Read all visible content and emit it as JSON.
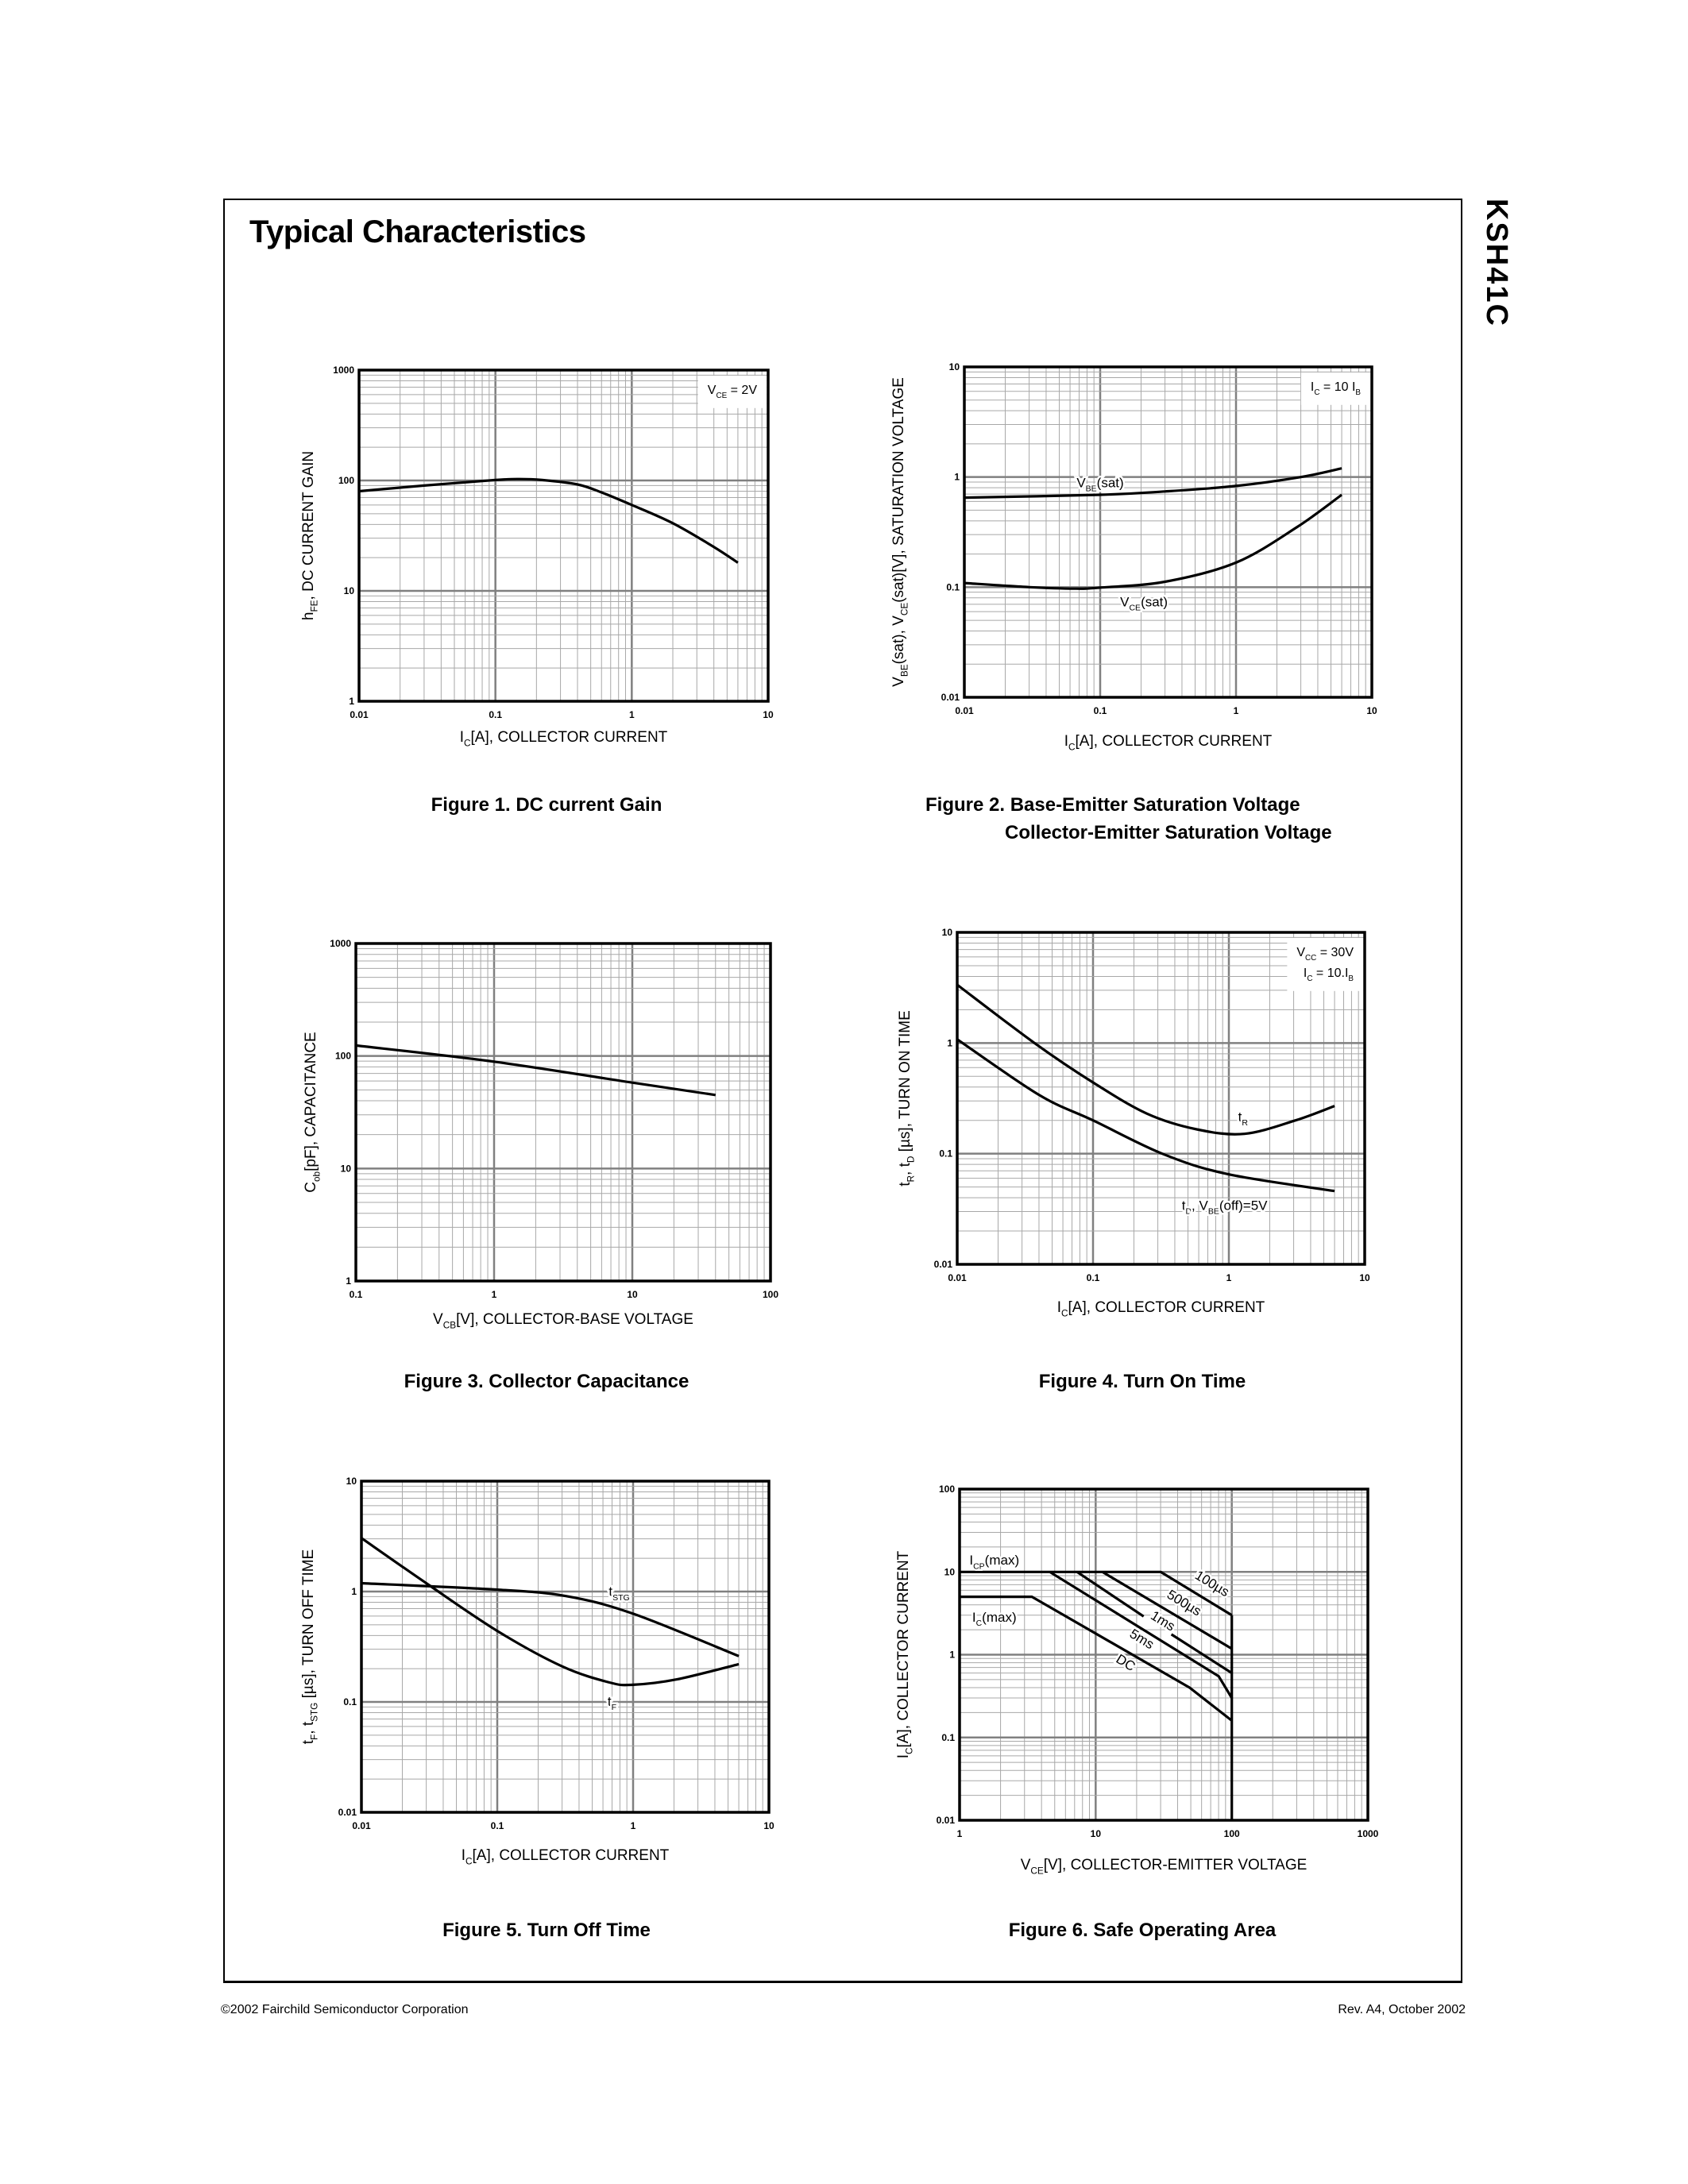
{
  "page": {
    "title": "Typical Characteristics",
    "part_number": "KSH41C",
    "footer_left": "©2002 Fairchild Semiconductor Corporation",
    "footer_right": "Rev. A4, October 2002"
  },
  "chart_data": [
    {
      "type": "line",
      "caption": [
        "Figure 1. DC current Gain"
      ],
      "xscale": "log",
      "yscale": "log",
      "xlim": [
        0.01,
        10
      ],
      "ylim": [
        1,
        1000
      ],
      "grid": true,
      "xticks": [
        "0.01",
        "0.1",
        "1",
        "10"
      ],
      "yticks": [
        "1",
        "10",
        "100",
        "1000"
      ],
      "xlabel": [
        {
          "text": "I"
        },
        {
          "text": "C",
          "sub": true
        },
        {
          "text": "[A], COLLECTOR CURRENT"
        }
      ],
      "ylabel": [
        {
          "text": "h"
        },
        {
          "text": "FE",
          "sub": true
        },
        {
          "text": ", DC CURRENT GAIN"
        }
      ],
      "conditions": {
        "position": "top-right",
        "lines": [
          [
            {
              "text": "V"
            },
            {
              "text": "CE",
              "sub": true
            },
            {
              "text": " = 2V"
            }
          ]
        ]
      },
      "series": [
        {
          "interpolation": "smooth",
          "points": [
            [
              0.01,
              80
            ],
            [
              0.03,
              90
            ],
            [
              0.1,
              101
            ],
            [
              0.15,
              103
            ],
            [
              0.22,
              101
            ],
            [
              0.4,
              92
            ],
            [
              0.6,
              78
            ],
            [
              1,
              60
            ],
            [
              2,
              41
            ],
            [
              4,
              25
            ],
            [
              6,
              18
            ]
          ]
        }
      ],
      "annotations": []
    },
    {
      "type": "line",
      "caption": [
        "Figure 2. Base-Emitter Saturation Voltage",
        "Collector-Emitter Saturation Voltage"
      ],
      "xscale": "log",
      "yscale": "log",
      "xlim": [
        0.01,
        10
      ],
      "ylim": [
        0.01,
        10
      ],
      "grid": true,
      "xticks": [
        "0.01",
        "0.1",
        "1",
        "10"
      ],
      "yticks": [
        "0.01",
        "0.1",
        "1",
        "10"
      ],
      "xlabel": [
        {
          "text": "I"
        },
        {
          "text": "C",
          "sub": true
        },
        {
          "text": "[A], COLLECTOR CURRENT"
        }
      ],
      "ylabel": [
        {
          "text": "V"
        },
        {
          "text": "BE",
          "sub": true
        },
        {
          "text": "(sat), V"
        },
        {
          "text": "CE",
          "sub": true
        },
        {
          "text": "(sat)[V], SATURATION VOLTAGE"
        }
      ],
      "conditions": {
        "position": "top-right",
        "lines": [
          [
            {
              "text": "I"
            },
            {
              "text": "C",
              "sub": true
            },
            {
              "text": " = 10 I"
            },
            {
              "text": "B",
              "sub": true
            }
          ]
        ]
      },
      "series": [
        {
          "name": "VBE(sat)",
          "interpolation": "smooth",
          "points": [
            [
              0.01,
              0.65
            ],
            [
              0.1,
              0.69
            ],
            [
              0.3,
              0.74
            ],
            [
              1,
              0.83
            ],
            [
              3,
              1.0
            ],
            [
              6,
              1.2
            ]
          ]
        },
        {
          "name": "VCE(sat)",
          "interpolation": "smooth",
          "points": [
            [
              0.01,
              0.109
            ],
            [
              0.03,
              0.1
            ],
            [
              0.065,
              0.097
            ],
            [
              0.1,
              0.099
            ],
            [
              0.3,
              0.112
            ],
            [
              1,
              0.167
            ],
            [
              2.8,
              0.35
            ],
            [
              6,
              0.69
            ]
          ]
        }
      ],
      "annotations": [
        {
          "parts": [
            {
              "text": "V"
            },
            {
              "text": "BE",
              "sub": true
            },
            {
              "text": "(sat)"
            }
          ],
          "at": [
            0.1,
            0.81
          ]
        },
        {
          "parts": [
            {
              "text": "V"
            },
            {
              "text": "CE",
              "sub": true
            },
            {
              "text": "(sat)"
            }
          ],
          "at": [
            0.21,
            0.067
          ]
        }
      ]
    },
    {
      "type": "line",
      "caption": [
        "Figure 3. Collector Capacitance"
      ],
      "xscale": "log",
      "yscale": "log",
      "xlim": [
        0.1,
        100
      ],
      "ylim": [
        1,
        1000
      ],
      "grid": true,
      "xticks": [
        "0.1",
        "1",
        "10",
        "100"
      ],
      "yticks": [
        "1",
        "10",
        "100",
        "1000"
      ],
      "xlabel": [
        {
          "text": "V"
        },
        {
          "text": "CB",
          "sub": true
        },
        {
          "text": "[V], COLLECTOR-BASE VOLTAGE"
        }
      ],
      "ylabel": [
        {
          "text": "C"
        },
        {
          "text": "ob",
          "sub": true
        },
        {
          "text": "[pF], CAPACITANCE"
        }
      ],
      "series": [
        {
          "interpolation": "smooth",
          "points": [
            [
              0.1,
              124
            ],
            [
              1,
              89
            ],
            [
              10,
              58
            ],
            [
              40,
              45
            ]
          ]
        }
      ],
      "annotations": []
    },
    {
      "type": "line",
      "caption": [
        "Figure 4. Turn On Time"
      ],
      "xscale": "log",
      "yscale": "log",
      "xlim": [
        0.01,
        10
      ],
      "ylim": [
        0.01,
        10
      ],
      "grid": true,
      "xticks": [
        "0.01",
        "0.1",
        "1",
        "10"
      ],
      "yticks": [
        "0.01",
        "0.1",
        "1",
        "10"
      ],
      "xlabel": [
        {
          "text": "I"
        },
        {
          "text": "C",
          "sub": true
        },
        {
          "text": "[A], COLLECTOR CURRENT"
        }
      ],
      "ylabel": [
        {
          "text": "t"
        },
        {
          "text": "R",
          "sub": true
        },
        {
          "text": ", t"
        },
        {
          "text": "D",
          "sub": true
        },
        {
          "text": " [µs], TURN ON TIME"
        }
      ],
      "conditions": {
        "position": "top-right",
        "plain": true,
        "lines": [
          [
            {
              "text": "V"
            },
            {
              "text": "CC",
              "sub": true
            },
            {
              "text": " = 30V"
            }
          ],
          [
            {
              "text": "I"
            },
            {
              "text": "C",
              "sub": true
            },
            {
              "text": " = 10.I"
            },
            {
              "text": "B",
              "sub": true
            }
          ]
        ]
      },
      "series": [
        {
          "name": "tR",
          "interpolation": "smooth",
          "points": [
            [
              0.01,
              3.36
            ],
            [
              0.037,
              1.0
            ],
            [
              0.1,
              0.44
            ],
            [
              0.25,
              0.23
            ],
            [
              0.58,
              0.166
            ],
            [
              1.3,
              0.151
            ],
            [
              3.1,
              0.2
            ],
            [
              6,
              0.27
            ]
          ]
        },
        {
          "name": "tD",
          "interpolation": "smooth",
          "points": [
            [
              0.01,
              1.08
            ],
            [
              0.04,
              0.34
            ],
            [
              0.1,
              0.2
            ],
            [
              0.33,
              0.099
            ],
            [
              1,
              0.065
            ],
            [
              6,
              0.046
            ]
          ]
        }
      ],
      "annotations": [
        {
          "parts": [
            {
              "text": "t"
            },
            {
              "text": "R",
              "sub": true
            }
          ],
          "at": [
            1.27,
            0.196
          ]
        },
        {
          "parts": [
            {
              "text": "t"
            },
            {
              "text": "D",
              "sub": true
            },
            {
              "text": ", V"
            },
            {
              "text": "BE",
              "sub": true
            },
            {
              "text": "(off)=5V"
            }
          ],
          "at": [
            0.93,
            0.031
          ]
        }
      ]
    },
    {
      "type": "line",
      "caption": [
        "Figure 5. Turn Off Time"
      ],
      "xscale": "log",
      "yscale": "log",
      "xlim": [
        0.01,
        10
      ],
      "ylim": [
        0.01,
        10
      ],
      "grid": true,
      "xticks": [
        "0.01",
        "0.1",
        "1",
        "10"
      ],
      "yticks": [
        "0.01",
        "0.1",
        "1",
        "10"
      ],
      "xlabel": [
        {
          "text": "I"
        },
        {
          "text": "C",
          "sub": true
        },
        {
          "text": "[A], COLLECTOR CURRENT"
        }
      ],
      "ylabel": [
        {
          "text": "t"
        },
        {
          "text": "F",
          "sub": true
        },
        {
          "text": ", t"
        },
        {
          "text": "STG",
          "sub": true
        },
        {
          "text": " [µs], TURN OFF TIME"
        }
      ],
      "series": [
        {
          "name": "tSTG",
          "interpolation": "smooth",
          "points": [
            [
              0.01,
              1.19
            ],
            [
              0.1,
              1.04
            ],
            [
              0.32,
              0.91
            ],
            [
              1,
              0.63
            ],
            [
              6,
              0.26
            ]
          ]
        },
        {
          "name": "tF",
          "interpolation": "smooth",
          "points": [
            [
              0.01,
              3.05
            ],
            [
              0.03,
              1.19
            ],
            [
              0.1,
              0.44
            ],
            [
              0.3,
              0.21
            ],
            [
              0.67,
              0.15
            ],
            [
              1,
              0.143
            ],
            [
              2.1,
              0.16
            ],
            [
              6,
              0.22
            ]
          ]
        }
      ],
      "annotations": [
        {
          "parts": [
            {
              "text": "t"
            },
            {
              "text": "STG",
              "sub": true
            }
          ],
          "at": [
            0.79,
            0.91
          ]
        },
        {
          "parts": [
            {
              "text": "t"
            },
            {
              "text": "F",
              "sub": true
            }
          ],
          "at": [
            0.7,
            0.092
          ]
        }
      ]
    },
    {
      "type": "line",
      "caption": [
        "Figure 6. Safe Operating Area"
      ],
      "xscale": "log",
      "yscale": "log",
      "xlim": [
        1,
        1000
      ],
      "ylim": [
        0.01,
        100
      ],
      "grid": true,
      "xticks": [
        "1",
        "10",
        "100",
        "1000"
      ],
      "yticks": [
        "0.01",
        "0.1",
        "1",
        "10",
        "100"
      ],
      "xlabel": [
        {
          "text": "V"
        },
        {
          "text": "CE",
          "sub": true
        },
        {
          "text": "[V], COLLECTOR-EMITTER VOLTAGE"
        }
      ],
      "ylabel": [
        {
          "text": "I"
        },
        {
          "text": "C",
          "sub": true
        },
        {
          "text": "[A], COLLECTOR CURRENT"
        }
      ],
      "series": [
        {
          "name": "100µs",
          "interpolation": "linear",
          "points": [
            [
              1,
              10
            ],
            [
              30,
              10
            ],
            [
              100,
              3
            ]
          ]
        },
        {
          "name": "500µs",
          "interpolation": "linear",
          "points": [
            [
              11.2,
              10
            ],
            [
              100,
              1.18
            ]
          ]
        },
        {
          "name": "1ms",
          "interpolation": "linear",
          "points": [
            [
              7.3,
              10
            ],
            [
              22.5,
              2.9
            ]
          ]
        },
        {
          "name": "1ms",
          "interpolation": "linear",
          "points": [
            [
              36,
              1.76
            ],
            [
              100,
              0.6
            ]
          ]
        },
        {
          "name": "5ms",
          "interpolation": "linear",
          "points": [
            [
              4.6,
              10
            ],
            [
              80,
              0.55
            ],
            [
              100,
              0.3
            ]
          ]
        },
        {
          "name": "DC",
          "interpolation": "linear",
          "points": [
            [
              1,
              5
            ],
            [
              3.4,
              5
            ],
            [
              49,
              0.4
            ],
            [
              100,
              0.16
            ]
          ]
        },
        {
          "interpolation": "linear",
          "points": [
            [
              100,
              3
            ],
            [
              100,
              0.01
            ]
          ]
        }
      ],
      "annotations": [
        {
          "parts": [
            {
              "text": "I"
            },
            {
              "text": "CP",
              "sub": true
            },
            {
              "text": "(max)"
            }
          ],
          "at": [
            1.8,
            12.2
          ]
        },
        {
          "parts": [
            {
              "text": "I"
            },
            {
              "text": "C",
              "sub": true
            },
            {
              "text": "(max)"
            }
          ],
          "at": [
            1.8,
            2.5
          ]
        },
        {
          "parts": [
            {
              "text": "100µs"
            }
          ],
          "at": [
            69,
            6.5
          ],
          "along_line": true
        },
        {
          "parts": [
            {
              "text": "500µs"
            }
          ],
          "at": [
            43,
            3.8
          ],
          "along_line": true
        },
        {
          "parts": [
            {
              "text": "1ms"
            }
          ],
          "at": [
            30,
            2.3
          ],
          "along_line": true
        },
        {
          "parts": [
            {
              "text": "5ms"
            }
          ],
          "at": [
            21,
            1.39
          ],
          "along_line": true
        },
        {
          "parts": [
            {
              "text": "DC"
            }
          ],
          "at": [
            16,
            0.72
          ],
          "along_line": true
        }
      ]
    }
  ]
}
